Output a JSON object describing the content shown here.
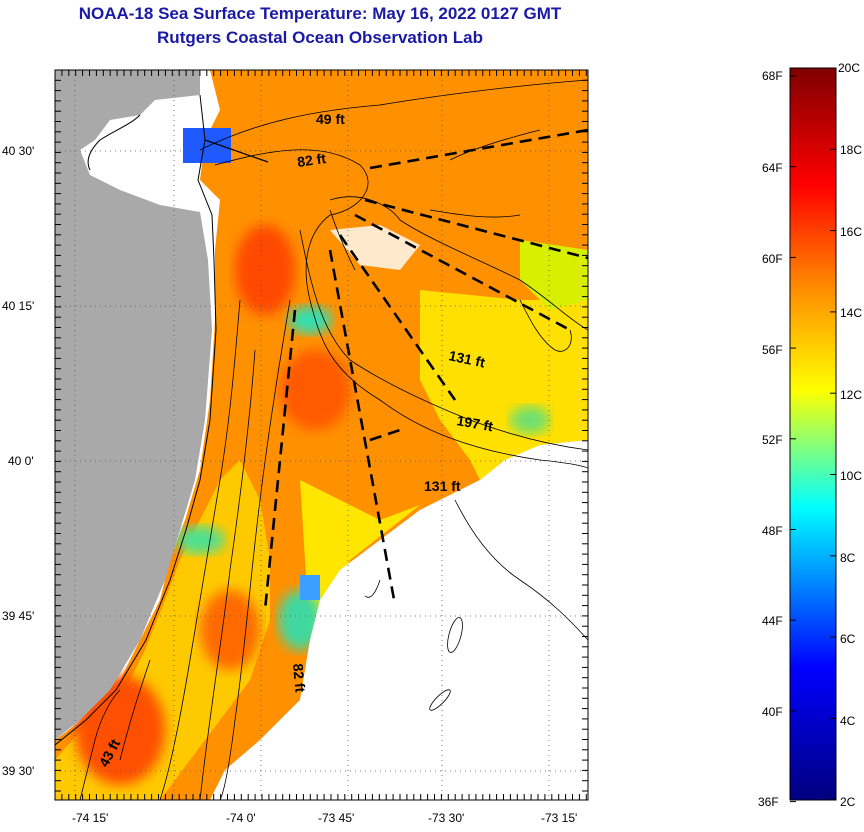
{
  "title": {
    "line1": "NOAA-18 Sea Surface Temperature:  May 16, 2022 0127 GMT",
    "line2": "Rutgers Coastal Ocean Observation Lab"
  },
  "map": {
    "lon_ticks": [
      "-74 15'",
      "-74 0'",
      "-73 45'",
      "-73 30'",
      "-73 15'"
    ],
    "lat_ticks": [
      "40 30'",
      "40 15'",
      "40 0'",
      "39 45'",
      "39 30'"
    ],
    "depth_labels": [
      "49 ft",
      "82 ft",
      "131 ft",
      "197 ft",
      "131 ft",
      "82 ft",
      "43 ft"
    ],
    "colors": {
      "land": "#a9a9a9",
      "cloud": "#ffffff"
    }
  },
  "colorbar": {
    "fahrenheit": [
      "68F",
      "64F",
      "60F",
      "56F",
      "52F",
      "48F",
      "44F",
      "40F",
      "36F"
    ],
    "celsius": [
      "20C",
      "18C",
      "16C",
      "14C",
      "12C",
      "10C",
      "8C",
      "6C",
      "4C",
      "2C"
    ],
    "stops": [
      "#7f0000",
      "#ff0000",
      "#ff8c00",
      "#ffff00",
      "#00ffff",
      "#0000ff",
      "#00007f"
    ]
  }
}
